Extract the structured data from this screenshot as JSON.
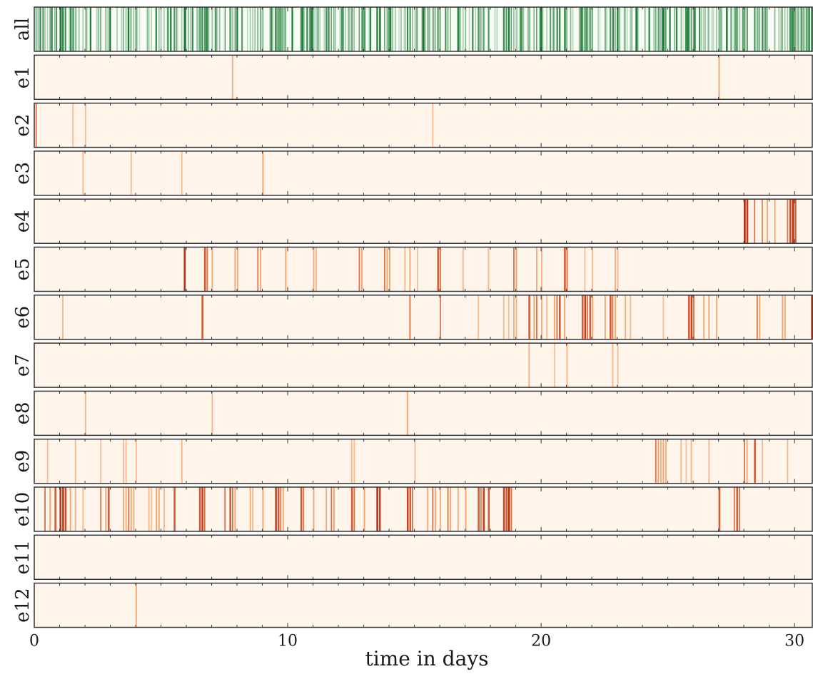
{
  "chart_data": {
    "type": "event-raster",
    "xlabel": "time in days",
    "xlim": [
      0,
      30.7
    ],
    "xticks": [
      0,
      10,
      20,
      30
    ],
    "colors": {
      "all_background": "#f7fcf5",
      "all_events": "#1b7a35",
      "row_background": "#fff5eb",
      "row_events_light": "#f6a06a",
      "row_events_dark": "#b3220a"
    },
    "rows": [
      {
        "label": "all",
        "events": []
      },
      {
        "label": "e1",
        "events": [
          [
            7.8,
            0.4
          ],
          [
            27.0,
            0.5
          ]
        ]
      },
      {
        "label": "e2",
        "events": [
          [
            0.05,
            0.6
          ],
          [
            1.5,
            0.3
          ],
          [
            2.0,
            0.3
          ],
          [
            15.7,
            0.3
          ]
        ]
      },
      {
        "label": "e3",
        "events": [
          [
            1.9,
            0.35
          ],
          [
            3.8,
            0.3
          ],
          [
            5.8,
            0.3
          ],
          [
            9.0,
            0.5
          ]
        ]
      },
      {
        "label": "e4",
        "events": [
          [
            28.0,
            0.95
          ],
          [
            28.1,
            0.85
          ],
          [
            28.4,
            0.6
          ],
          [
            28.7,
            0.55
          ],
          [
            28.9,
            0.5
          ],
          [
            29.2,
            0.5
          ],
          [
            29.7,
            0.6
          ],
          [
            29.8,
            0.75
          ],
          [
            29.9,
            0.9
          ],
          [
            30.0,
            0.7
          ]
        ]
      },
      {
        "label": "e5",
        "events": [
          [
            5.9,
            0.9
          ],
          [
            6.7,
            0.7
          ],
          [
            6.8,
            0.6
          ],
          [
            7.0,
            0.5
          ],
          [
            7.9,
            0.5
          ],
          [
            8.0,
            0.4
          ],
          [
            8.8,
            0.6
          ],
          [
            8.9,
            0.5
          ],
          [
            9.9,
            0.5
          ],
          [
            11.0,
            0.4
          ],
          [
            11.1,
            0.35
          ],
          [
            12.8,
            0.6
          ],
          [
            12.9,
            0.5
          ],
          [
            13.8,
            0.6
          ],
          [
            13.9,
            0.5
          ],
          [
            14.0,
            0.5
          ],
          [
            14.6,
            0.35
          ],
          [
            14.8,
            0.4
          ],
          [
            15.1,
            0.3
          ],
          [
            15.9,
            0.7
          ],
          [
            16.0,
            0.6
          ],
          [
            16.9,
            0.35
          ],
          [
            17.9,
            0.35
          ],
          [
            18.9,
            0.6
          ],
          [
            19.0,
            0.5
          ],
          [
            19.8,
            0.4
          ],
          [
            20.0,
            0.35
          ],
          [
            20.9,
            0.7
          ],
          [
            21.0,
            0.6
          ],
          [
            21.7,
            0.3
          ],
          [
            22.0,
            0.35
          ],
          [
            22.9,
            0.4
          ],
          [
            23.0,
            0.35
          ]
        ]
      },
      {
        "label": "e6",
        "events": [
          [
            1.1,
            0.35
          ],
          [
            6.6,
            0.7
          ],
          [
            14.8,
            0.6
          ],
          [
            16.0,
            0.6
          ],
          [
            17.5,
            0.3
          ],
          [
            18.5,
            0.35
          ],
          [
            18.7,
            0.3
          ],
          [
            18.9,
            0.4
          ],
          [
            19.0,
            0.35
          ],
          [
            19.5,
            0.7
          ],
          [
            19.7,
            0.5
          ],
          [
            19.8,
            0.6
          ],
          [
            20.0,
            0.4
          ],
          [
            20.2,
            0.3
          ],
          [
            20.5,
            0.5
          ],
          [
            20.6,
            0.6
          ],
          [
            20.7,
            0.7
          ],
          [
            20.9,
            0.5
          ],
          [
            21.6,
            0.7
          ],
          [
            21.7,
            0.8
          ],
          [
            21.8,
            0.6
          ],
          [
            21.9,
            0.7
          ],
          [
            22.0,
            0.5
          ],
          [
            22.5,
            0.5
          ],
          [
            22.7,
            0.7
          ],
          [
            22.8,
            0.6
          ],
          [
            22.9,
            0.5
          ],
          [
            23.3,
            0.4
          ],
          [
            23.5,
            0.35
          ],
          [
            24.8,
            0.3
          ],
          [
            25.8,
            0.7
          ],
          [
            25.9,
            0.8
          ],
          [
            26.0,
            0.6
          ],
          [
            26.4,
            0.4
          ],
          [
            26.6,
            0.5
          ],
          [
            26.9,
            0.4
          ],
          [
            28.5,
            0.6
          ],
          [
            28.6,
            0.5
          ],
          [
            29.5,
            0.5
          ],
          [
            29.6,
            0.4
          ],
          [
            30.65,
            0.7
          ]
        ]
      },
      {
        "label": "e7",
        "events": [
          [
            19.5,
            0.35
          ],
          [
            20.5,
            0.3
          ],
          [
            21.0,
            0.35
          ],
          [
            22.8,
            0.35
          ],
          [
            23.0,
            0.3
          ]
        ]
      },
      {
        "label": "e8",
        "events": [
          [
            2.0,
            0.35
          ],
          [
            7.0,
            0.35
          ],
          [
            14.7,
            0.45
          ]
        ]
      },
      {
        "label": "e9",
        "events": [
          [
            0.5,
            0.3
          ],
          [
            1.6,
            0.35
          ],
          [
            2.6,
            0.3
          ],
          [
            3.5,
            0.35
          ],
          [
            3.6,
            0.3
          ],
          [
            4.0,
            0.3
          ],
          [
            5.8,
            0.35
          ],
          [
            12.5,
            0.35
          ],
          [
            12.6,
            0.3
          ],
          [
            15.0,
            0.3
          ],
          [
            24.5,
            0.6
          ],
          [
            24.6,
            0.5
          ],
          [
            24.7,
            0.4
          ],
          [
            24.8,
            0.5
          ],
          [
            24.9,
            0.4
          ],
          [
            25.5,
            0.35
          ],
          [
            25.7,
            0.3
          ],
          [
            25.9,
            0.35
          ],
          [
            26.6,
            0.35
          ],
          [
            28.0,
            0.6
          ],
          [
            28.1,
            0.5
          ],
          [
            28.4,
            0.7
          ],
          [
            28.7,
            0.35
          ],
          [
            29.7,
            0.35
          ]
        ]
      },
      {
        "label": "e10",
        "events": [
          [
            0.4,
            0.6
          ],
          [
            0.6,
            0.5
          ],
          [
            0.8,
            0.7
          ],
          [
            1.0,
            0.9
          ],
          [
            1.1,
            0.85
          ],
          [
            1.2,
            0.75
          ],
          [
            1.4,
            0.5
          ],
          [
            1.6,
            0.4
          ],
          [
            1.9,
            0.35
          ],
          [
            2.6,
            0.6
          ],
          [
            2.8,
            0.5
          ],
          [
            2.9,
            0.7
          ],
          [
            3.5,
            0.5
          ],
          [
            3.6,
            0.4
          ],
          [
            3.7,
            0.6
          ],
          [
            3.8,
            0.5
          ],
          [
            3.9,
            0.4
          ],
          [
            4.5,
            0.35
          ],
          [
            4.6,
            0.3
          ],
          [
            4.8,
            0.5
          ],
          [
            4.9,
            0.4
          ],
          [
            5.1,
            0.35
          ],
          [
            5.5,
            0.7
          ],
          [
            6.5,
            0.7
          ],
          [
            6.6,
            0.8
          ],
          [
            6.7,
            0.6
          ],
          [
            7.5,
            0.6
          ],
          [
            7.7,
            0.7
          ],
          [
            7.8,
            0.6
          ],
          [
            7.9,
            0.5
          ],
          [
            8.5,
            0.4
          ],
          [
            8.6,
            0.35
          ],
          [
            9.0,
            0.5
          ],
          [
            9.5,
            0.8
          ],
          [
            9.6,
            0.7
          ],
          [
            9.7,
            0.6
          ],
          [
            9.8,
            0.5
          ],
          [
            10.5,
            0.7
          ],
          [
            10.6,
            0.6
          ],
          [
            11.0,
            0.5
          ],
          [
            11.5,
            0.4
          ],
          [
            11.7,
            0.6
          ],
          [
            11.8,
            0.5
          ],
          [
            12.5,
            0.7
          ],
          [
            12.6,
            0.6
          ],
          [
            13.0,
            0.5
          ],
          [
            13.5,
            0.9
          ],
          [
            13.6,
            0.8
          ],
          [
            14.7,
            0.8
          ],
          [
            14.8,
            0.7
          ],
          [
            14.9,
            0.6
          ],
          [
            15.5,
            0.5
          ],
          [
            15.7,
            0.6
          ],
          [
            15.8,
            0.5
          ],
          [
            16.0,
            0.4
          ],
          [
            16.3,
            0.6
          ],
          [
            16.4,
            0.5
          ],
          [
            16.7,
            0.4
          ],
          [
            17.0,
            0.5
          ],
          [
            17.5,
            0.7
          ],
          [
            17.6,
            0.6
          ],
          [
            17.7,
            0.8
          ],
          [
            17.9,
            0.7
          ],
          [
            18.5,
            0.8
          ],
          [
            18.6,
            0.7
          ],
          [
            18.7,
            0.9
          ],
          [
            18.8,
            0.6
          ],
          [
            27.0,
            0.7
          ],
          [
            27.6,
            0.6
          ],
          [
            27.7,
            0.7
          ],
          [
            27.8,
            0.6
          ]
        ]
      },
      {
        "label": "e11",
        "events": []
      },
      {
        "label": "e12",
        "events": [
          [
            4.0,
            0.4
          ]
        ]
      }
    ]
  }
}
